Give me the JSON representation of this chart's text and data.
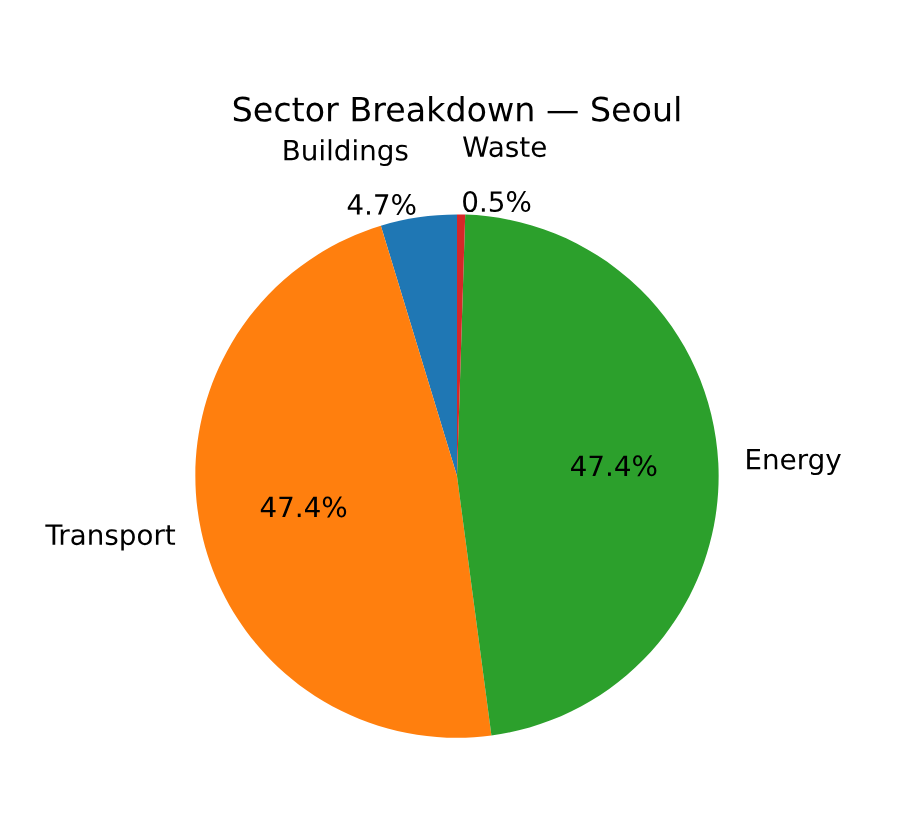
{
  "chart_data": {
    "type": "pie",
    "title": "Sector Breakdown — Seoul",
    "categories": [
      "Buildings",
      "Transport",
      "Energy",
      "Waste"
    ],
    "values": [
      4.7,
      47.4,
      47.4,
      0.5
    ],
    "value_labels": [
      "4.7%",
      "47.4%",
      "47.4%",
      "0.5%"
    ],
    "colors": [
      "#1f77b4",
      "#ff7f0e",
      "#2ca02c",
      "#d62728"
    ],
    "legend": false
  }
}
